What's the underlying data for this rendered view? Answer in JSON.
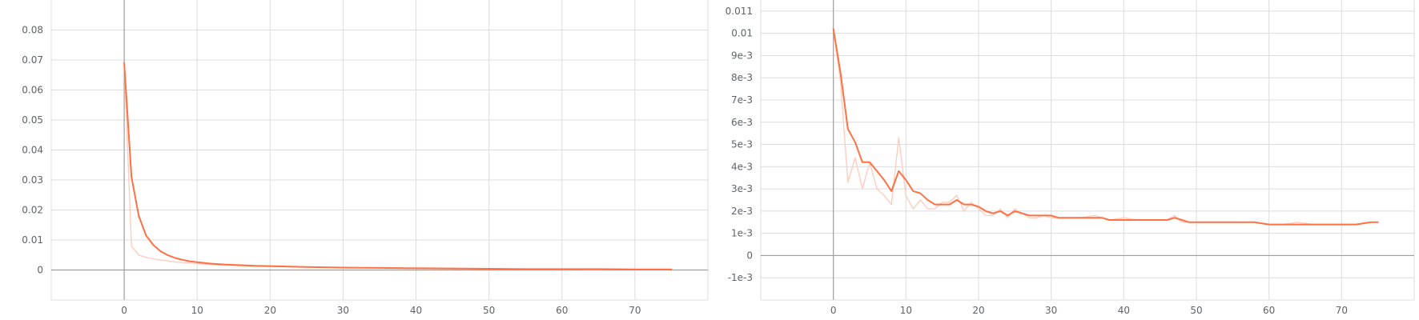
{
  "chart_data": [
    {
      "type": "line",
      "xlim": [
        -10,
        80
      ],
      "ylim": [
        -0.01,
        0.09
      ],
      "x_ticks": [
        0,
        10,
        20,
        30,
        40,
        50,
        60,
        70
      ],
      "y_ticks": [
        0,
        0.01,
        0.02,
        0.03,
        0.04,
        0.05,
        0.06,
        0.07,
        0.08
      ],
      "x_tick_labels": [
        "0",
        "10",
        "20",
        "30",
        "40",
        "50",
        "60",
        "70"
      ],
      "y_tick_labels": [
        "0",
        "0.01",
        "0.02",
        "0.03",
        "0.04",
        "0.05",
        "0.06",
        "0.07",
        "0.08"
      ],
      "grid": true,
      "colors": {
        "smoothed": "#ff7043",
        "raw": "#ffcdbf",
        "axis": "#9e9e9e",
        "grid": "#dadce0"
      },
      "series": [
        {
          "role": "raw",
          "x": [
            0,
            1,
            2,
            3,
            4,
            5,
            6,
            7,
            8,
            9,
            10,
            12,
            14,
            16,
            18,
            20,
            25,
            30,
            35,
            40,
            45,
            50,
            55,
            60,
            65,
            70,
            75
          ],
          "y": [
            0.069,
            0.008,
            0.005,
            0.0042,
            0.0037,
            0.0033,
            0.003,
            0.0027,
            0.0025,
            0.0023,
            0.0021,
            0.0018,
            0.0016,
            0.0014,
            0.0013,
            0.0012,
            0.001,
            0.0008,
            0.0007,
            0.0006,
            0.0005,
            0.0004,
            0.0003,
            0.0003,
            0.0002,
            0.0002,
            0.0002
          ]
        },
        {
          "role": "smoothed",
          "x": [
            0,
            1,
            2,
            3,
            4,
            5,
            6,
            7,
            8,
            9,
            10,
            12,
            14,
            16,
            18,
            20,
            25,
            30,
            35,
            40,
            45,
            50,
            55,
            60,
            65,
            70,
            75
          ],
          "y": [
            0.069,
            0.031,
            0.018,
            0.0115,
            0.0083,
            0.0062,
            0.0049,
            0.004,
            0.0034,
            0.0029,
            0.0026,
            0.0021,
            0.0018,
            0.0016,
            0.0014,
            0.0013,
            0.001,
            0.0008,
            0.0007,
            0.0006,
            0.0005,
            0.0004,
            0.0003,
            0.0003,
            0.0003,
            0.0002,
            0.0002
          ]
        }
      ]
    },
    {
      "type": "line",
      "xlim": [
        -10,
        80
      ],
      "ylim": [
        -0.002,
        0.0115
      ],
      "x_ticks": [
        0,
        10,
        20,
        30,
        40,
        50,
        60,
        70
      ],
      "y_ticks": [
        -0.001,
        0,
        0.001,
        0.002,
        0.003,
        0.004,
        0.005,
        0.006,
        0.007,
        0.008,
        0.009,
        0.01,
        0.011
      ],
      "x_tick_labels": [
        "0",
        "10",
        "20",
        "30",
        "40",
        "50",
        "60",
        "70"
      ],
      "y_tick_labels": [
        "-1e-3",
        "0",
        "1e-3",
        "2e-3",
        "3e-3",
        "4e-3",
        "5e-3",
        "6e-3",
        "7e-3",
        "8e-3",
        "9e-3",
        "0.01",
        "0.011"
      ],
      "grid": true,
      "colors": {
        "smoothed": "#ff7043",
        "raw": "#ffcdbf",
        "axis": "#9e9e9e",
        "grid": "#dadce0"
      },
      "series": [
        {
          "role": "raw",
          "x": [
            0,
            1,
            2,
            3,
            4,
            5,
            6,
            7,
            8,
            9,
            10,
            11,
            12,
            13,
            14,
            15,
            16,
            17,
            18,
            19,
            20,
            21,
            22,
            23,
            24,
            25,
            26,
            27,
            28,
            29,
            30,
            32,
            34,
            36,
            38,
            40,
            42,
            44,
            46,
            47,
            48,
            50,
            52,
            54,
            56,
            58,
            60,
            62,
            64,
            66,
            68,
            70,
            72,
            74,
            75
          ],
          "y": [
            0.0102,
            0.0078,
            0.0033,
            0.0044,
            0.003,
            0.0042,
            0.003,
            0.0027,
            0.0023,
            0.0053,
            0.0027,
            0.0021,
            0.0025,
            0.0021,
            0.0021,
            0.0024,
            0.0024,
            0.0027,
            0.002,
            0.0024,
            0.0021,
            0.0018,
            0.0018,
            0.0021,
            0.0017,
            0.0021,
            0.0019,
            0.0017,
            0.0017,
            0.0018,
            0.0017,
            0.0017,
            0.0017,
            0.0018,
            0.0016,
            0.0017,
            0.0016,
            0.0016,
            0.0016,
            0.0018,
            0.0015,
            0.0015,
            0.0015,
            0.0015,
            0.0015,
            0.0015,
            0.0014,
            0.0014,
            0.0015,
            0.0014,
            0.0014,
            0.0014,
            0.0014,
            0.0015,
            0.0015
          ]
        },
        {
          "role": "smoothed",
          "x": [
            0,
            1,
            2,
            3,
            4,
            5,
            6,
            7,
            8,
            9,
            10,
            11,
            12,
            13,
            14,
            15,
            16,
            17,
            18,
            19,
            20,
            21,
            22,
            23,
            24,
            25,
            26,
            27,
            28,
            29,
            30,
            31,
            32,
            33,
            34,
            35,
            36,
            37,
            38,
            39,
            40,
            41,
            42,
            43,
            44,
            45,
            46,
            47,
            48,
            49,
            50,
            52,
            54,
            56,
            58,
            60,
            62,
            64,
            66,
            68,
            70,
            72,
            74,
            75
          ],
          "y": [
            0.0102,
            0.0082,
            0.0057,
            0.0051,
            0.0042,
            0.0042,
            0.0038,
            0.0034,
            0.0029,
            0.0038,
            0.0034,
            0.0029,
            0.0028,
            0.0025,
            0.0023,
            0.0023,
            0.0023,
            0.0025,
            0.0023,
            0.0023,
            0.0022,
            0.002,
            0.0019,
            0.002,
            0.0018,
            0.002,
            0.0019,
            0.0018,
            0.0018,
            0.0018,
            0.0018,
            0.0017,
            0.0017,
            0.0017,
            0.0017,
            0.0017,
            0.0017,
            0.0017,
            0.0016,
            0.0016,
            0.0016,
            0.0016,
            0.0016,
            0.0016,
            0.0016,
            0.0016,
            0.0016,
            0.0017,
            0.0016,
            0.0015,
            0.0015,
            0.0015,
            0.0015,
            0.0015,
            0.0015,
            0.0014,
            0.0014,
            0.0014,
            0.0014,
            0.0014,
            0.0014,
            0.0014,
            0.0015,
            0.0015
          ]
        }
      ]
    }
  ]
}
